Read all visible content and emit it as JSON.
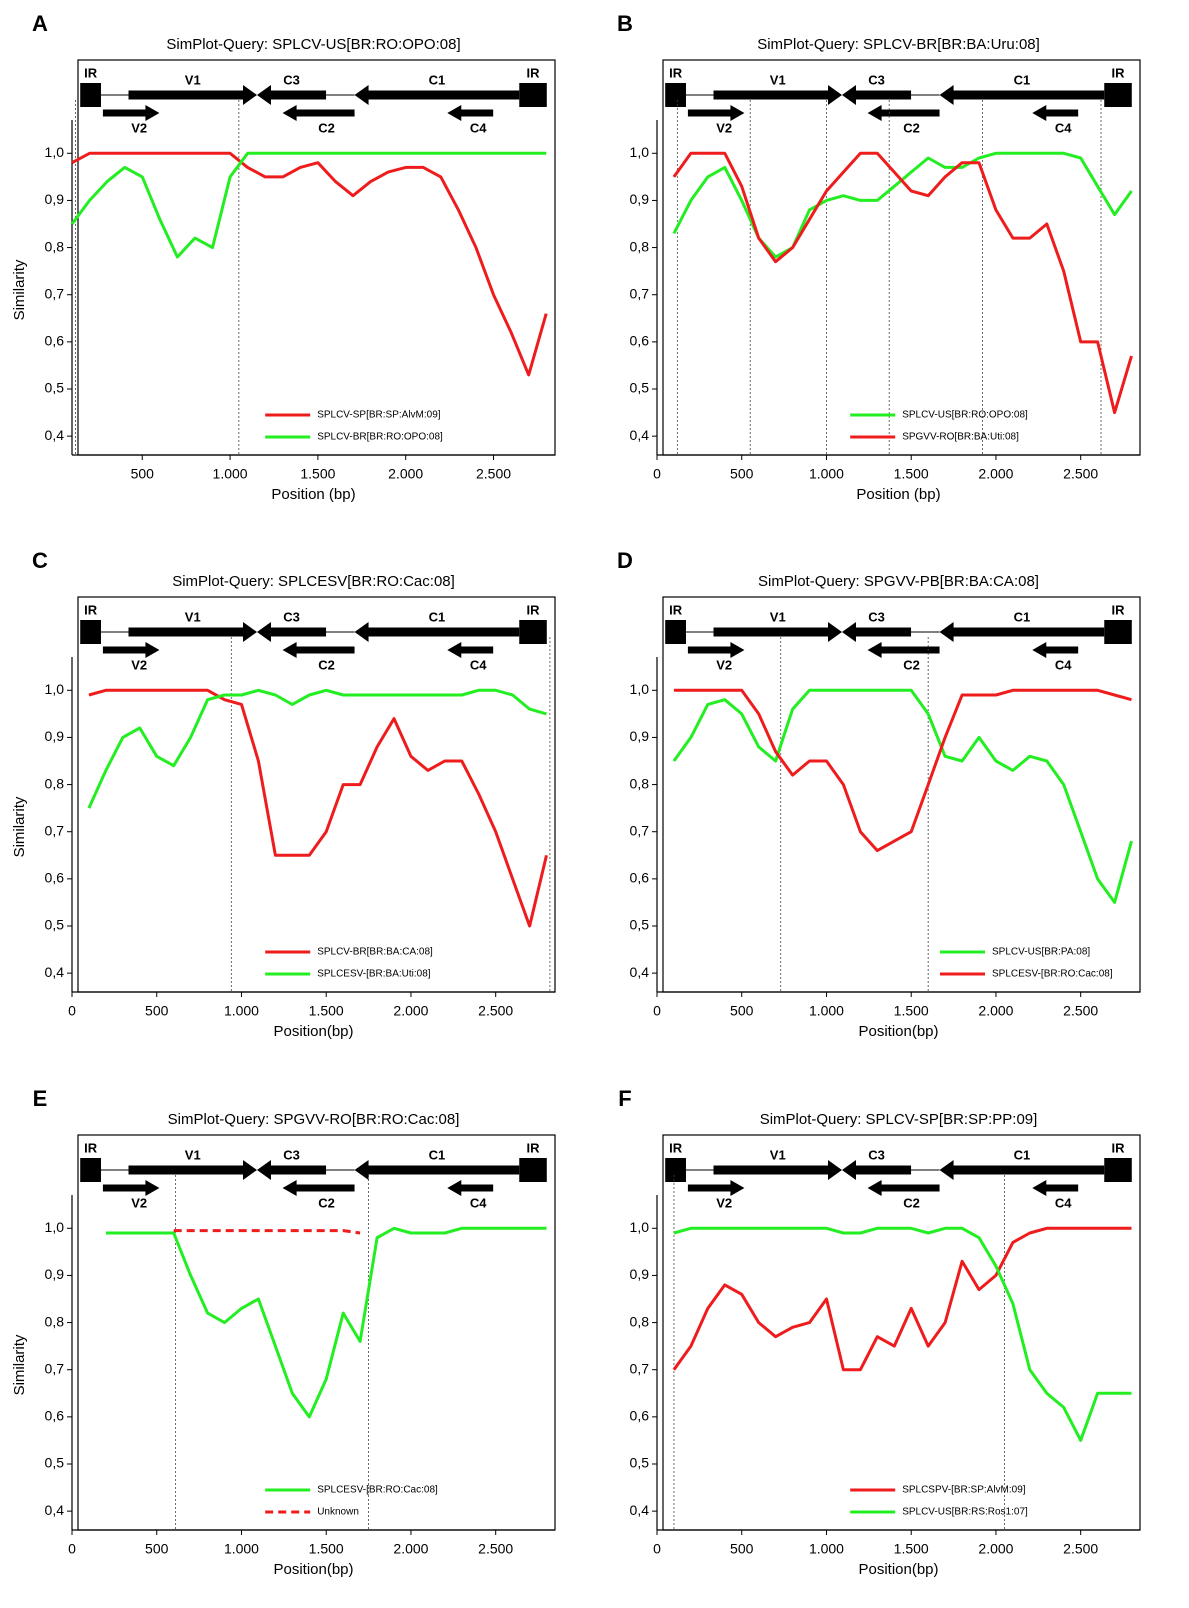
{
  "chart_data": [
    {
      "type": "line",
      "panel": "A",
      "title": "SimPlot-Query: SPLCV-US[BR:RO:OPO:08]",
      "y_label": "Similarity",
      "x_label": "Position (bp)",
      "genes": [
        "IR",
        "V1",
        "C3",
        "C1",
        "IR",
        "V2",
        "C2",
        "C4"
      ],
      "x": [
        100,
        200,
        300,
        400,
        500,
        600,
        700,
        800,
        900,
        1000,
        1100,
        1200,
        1300,
        1400,
        1500,
        1600,
        1700,
        1800,
        1900,
        2000,
        2100,
        2200,
        2300,
        2400,
        2500,
        2600,
        2700,
        2800
      ],
      "series": [
        {
          "name": "SPLCV-SP[BR:SP:AlvM:09]",
          "color": "#ee1c1c",
          "values": [
            0.98,
            1,
            1,
            1,
            1,
            1,
            1,
            1,
            1,
            1,
            0.97,
            0.95,
            0.95,
            0.97,
            0.98,
            0.94,
            0.91,
            0.94,
            0.96,
            0.97,
            0.97,
            0.95,
            0.88,
            0.8,
            0.7,
            0.62,
            0.53,
            0.66
          ]
        },
        {
          "name": "SPLCV-BR[BR:RO:OPO:08]",
          "color": "#22ee22",
          "values": [
            0.85,
            0.9,
            0.94,
            0.97,
            0.95,
            0.86,
            0.78,
            0.82,
            0.8,
            0.95,
            1,
            1,
            1,
            1,
            1,
            1,
            1,
            1,
            1,
            1,
            1,
            1,
            1,
            1,
            1,
            1,
            1,
            1
          ]
        }
      ],
      "breakpoints": [
        120,
        1050
      ],
      "legend": "lower center",
      "xlim": [
        100,
        2850
      ],
      "ylim": [
        0.36,
        1.06
      ],
      "xticks": [
        500,
        {
          "value": 1000,
          "label": "1.000"
        },
        {
          "value": 1500,
          "label": "1.500"
        },
        {
          "value": 2000,
          "label": "2.000"
        },
        {
          "value": 2500,
          "label": "2.500"
        }
      ],
      "yticks": [
        {
          "value": 0.4,
          "label": "0,4"
        },
        {
          "value": 0.5,
          "label": "0,5"
        },
        {
          "value": 0.6,
          "label": "0,6"
        },
        {
          "value": 0.7,
          "label": "0,7"
        },
        {
          "value": 0.8,
          "label": "0,8"
        },
        {
          "value": 0.9,
          "label": "0,9"
        },
        {
          "value": 1,
          "label": "1,0"
        }
      ]
    },
    {
      "type": "line",
      "panel": "B",
      "title": "SimPlot-Query: SPLCV-BR[BR:BA:Uru:08]",
      "x_label": "Position (bp)",
      "genes": [
        "IR",
        "V1",
        "C3",
        "C1",
        "IR",
        "V2",
        "C2",
        "C4"
      ],
      "x": [
        100,
        200,
        300,
        400,
        500,
        600,
        700,
        800,
        900,
        1000,
        1100,
        1200,
        1300,
        1400,
        1500,
        1600,
        1700,
        1800,
        1900,
        2000,
        2100,
        2200,
        2300,
        2400,
        2500,
        2600,
        2700,
        2800
      ],
      "series": [
        {
          "name": "SPLCV-US[BR:RO:OPO:08]",
          "color": "#22ee22",
          "values": [
            0.83,
            0.9,
            0.95,
            0.97,
            0.9,
            0.82,
            0.78,
            0.8,
            0.88,
            0.9,
            0.91,
            0.9,
            0.9,
            0.93,
            0.96,
            0.99,
            0.97,
            0.97,
            0.99,
            1,
            1,
            1,
            1,
            1,
            0.99,
            0.93,
            0.87,
            0.92
          ]
        },
        {
          "name": "SPGVV-RO[BR:BA:Uti:08]",
          "color": "#ee1c1c",
          "values": [
            0.95,
            1,
            1,
            1,
            0.93,
            0.82,
            0.77,
            0.8,
            0.86,
            0.92,
            0.96,
            1,
            1,
            0.96,
            0.92,
            0.91,
            0.95,
            0.98,
            0.98,
            0.88,
            0.82,
            0.82,
            0.85,
            0.75,
            0.6,
            0.6,
            0.45,
            0.57
          ]
        }
      ],
      "breakpoints": [
        120,
        550,
        1000,
        1370,
        1920,
        2620
      ],
      "legend": "lower center",
      "xlim": [
        0,
        2850
      ],
      "ylim": [
        0.36,
        1.06
      ],
      "xticks": [
        0,
        500,
        {
          "value": 1000,
          "label": "1.000"
        },
        {
          "value": 1500,
          "label": "1.500"
        },
        {
          "value": 2000,
          "label": "2.000"
        },
        {
          "value": 2500,
          "label": "2.500"
        }
      ],
      "yticks": [
        {
          "value": 0.4,
          "label": "0,4"
        },
        {
          "value": 0.5,
          "label": "0,5"
        },
        {
          "value": 0.6,
          "label": "0,6"
        },
        {
          "value": 0.7,
          "label": "0,7"
        },
        {
          "value": 0.8,
          "label": "0,8"
        },
        {
          "value": 0.9,
          "label": "0,9"
        },
        {
          "value": 1,
          "label": "1,0"
        }
      ]
    },
    {
      "type": "line",
      "panel": "C",
      "title": "SimPlot-Query: SPLCESV[BR:RO:Cac:08]",
      "y_label": "Similarity",
      "x_label": "Position(bp)",
      "genes": [
        "IR",
        "V1",
        "C3",
        "C1",
        "IR",
        "V2",
        "C2",
        "C4"
      ],
      "x": [
        100,
        200,
        300,
        400,
        500,
        600,
        700,
        800,
        900,
        1000,
        1100,
        1200,
        1300,
        1400,
        1500,
        1600,
        1700,
        1800,
        1900,
        2000,
        2100,
        2200,
        2300,
        2400,
        2500,
        2600,
        2700,
        2800
      ],
      "series": [
        {
          "name": "SPLCV-BR[BR:BA:CA:08]",
          "color": "#ee1c1c",
          "values": [
            0.99,
            1,
            1,
            1,
            1,
            1,
            1,
            1,
            0.98,
            0.97,
            0.85,
            0.65,
            0.65,
            0.65,
            0.7,
            0.8,
            0.8,
            0.88,
            0.94,
            0.86,
            0.83,
            0.85,
            0.85,
            0.78,
            0.7,
            0.6,
            0.5,
            0.65
          ]
        },
        {
          "name": "SPLCESV-[BR:BA:Uti:08]",
          "color": "#22ee22",
          "values": [
            0.75,
            0.83,
            0.9,
            0.92,
            0.86,
            0.84,
            0.9,
            0.98,
            0.99,
            0.99,
            1,
            0.99,
            0.97,
            0.99,
            1,
            0.99,
            0.99,
            0.99,
            0.99,
            0.99,
            0.99,
            0.99,
            0.99,
            1,
            1,
            0.99,
            0.96,
            0.95
          ]
        }
      ],
      "breakpoints": [
        940,
        2820
      ],
      "legend": "lower center",
      "xlim": [
        0,
        2850
      ],
      "ylim": [
        0.36,
        1.06
      ],
      "xticks": [
        0,
        500,
        {
          "value": 1000,
          "label": "1.000"
        },
        {
          "value": 1500,
          "label": "1.500"
        },
        {
          "value": 2000,
          "label": "2.000"
        },
        {
          "value": 2500,
          "label": "2.500"
        }
      ],
      "yticks": [
        {
          "value": 0.4,
          "label": "0,4"
        },
        {
          "value": 0.5,
          "label": "0,5"
        },
        {
          "value": 0.6,
          "label": "0,6"
        },
        {
          "value": 0.7,
          "label": "0,7"
        },
        {
          "value": 0.8,
          "label": "0,8"
        },
        {
          "value": 0.9,
          "label": "0,9"
        },
        {
          "value": 1,
          "label": "1,0"
        }
      ]
    },
    {
      "type": "line",
      "panel": "D",
      "title": "SimPlot-Query: SPGVV-PB[BR:BA:CA:08]",
      "x_label": "Position(bp)",
      "genes": [
        "IR",
        "V1",
        "C3",
        "C1",
        "IR",
        "V2",
        "C2",
        "C4"
      ],
      "x": [
        100,
        200,
        300,
        400,
        500,
        600,
        700,
        800,
        900,
        1000,
        1100,
        1200,
        1300,
        1400,
        1500,
        1600,
        1700,
        1800,
        1900,
        2000,
        2100,
        2200,
        2300,
        2400,
        2500,
        2600,
        2700,
        2800
      ],
      "series": [
        {
          "name": "SPLCV-US[BR:PA:08]",
          "color": "#22ee22",
          "values": [
            0.85,
            0.9,
            0.97,
            0.98,
            0.95,
            0.88,
            0.85,
            0.96,
            1,
            1,
            1,
            1,
            1,
            1,
            1,
            0.95,
            0.86,
            0.85,
            0.9,
            0.85,
            0.83,
            0.86,
            0.85,
            0.8,
            0.7,
            0.6,
            0.55,
            0.68
          ]
        },
        {
          "name": "SPLCESV-[BR:RO:Cac:08]",
          "color": "#ee1c1c",
          "values": [
            1,
            1,
            1,
            1,
            1,
            0.95,
            0.87,
            0.82,
            0.85,
            0.85,
            0.8,
            0.7,
            0.66,
            0.68,
            0.7,
            0.8,
            0.9,
            0.99,
            0.99,
            0.99,
            1,
            1,
            1,
            1,
            1,
            1,
            0.99,
            0.98
          ]
        }
      ],
      "breakpoints": [
        730,
        1600
      ],
      "legend": "lower right",
      "xlim": [
        0,
        2850
      ],
      "ylim": [
        0.36,
        1.06
      ],
      "xticks": [
        0,
        500,
        {
          "value": 1000,
          "label": "1.000"
        },
        {
          "value": 1500,
          "label": "1.500"
        },
        {
          "value": 2000,
          "label": "2.000"
        },
        {
          "value": 2500,
          "label": "2.500"
        }
      ],
      "yticks": [
        {
          "value": 0.4,
          "label": "0,4"
        },
        {
          "value": 0.5,
          "label": "0,5"
        },
        {
          "value": 0.6,
          "label": "0,6"
        },
        {
          "value": 0.7,
          "label": "0,7"
        },
        {
          "value": 0.8,
          "label": "0,8"
        },
        {
          "value": 0.9,
          "label": "0,9"
        },
        {
          "value": 1,
          "label": "1,0"
        }
      ]
    },
    {
      "type": "line",
      "panel": "E",
      "title": "SimPlot-Query: SPGVV-RO[BR:RO:Cac:08]",
      "y_label": "Similarity",
      "x_label": "Position(bp)",
      "genes": [
        "IR",
        "V1",
        "C3",
        "C1",
        "IR",
        "V2",
        "C2",
        "C4"
      ],
      "x": [
        100,
        200,
        300,
        400,
        500,
        600,
        700,
        800,
        900,
        1000,
        1100,
        1200,
        1300,
        1400,
        1500,
        1600,
        1700,
        1800,
        1900,
        2000,
        2100,
        2200,
        2300,
        2400,
        2500,
        2600,
        2700,
        2800
      ],
      "series": [
        {
          "name": "SPLCESV-[BR:RO:Cac:08]",
          "color": "#22ee22",
          "values": [
            null,
            0.99,
            0.99,
            0.99,
            0.99,
            0.99,
            0.9,
            0.82,
            0.8,
            0.83,
            0.85,
            0.75,
            0.65,
            0.6,
            0.68,
            0.82,
            0.76,
            0.98,
            1,
            0.99,
            0.99,
            0.99,
            1,
            1,
            1,
            1,
            1,
            1
          ]
        },
        {
          "name": "Unknown",
          "color": "#ee1c1c",
          "dash": true,
          "values": [
            null,
            null,
            null,
            null,
            null,
            0.995,
            0.995,
            0.995,
            0.995,
            0.995,
            0.995,
            0.995,
            0.995,
            0.995,
            0.995,
            0.995,
            0.99,
            null,
            null,
            null,
            null,
            null,
            null,
            null,
            null,
            null,
            null,
            null
          ]
        }
      ],
      "breakpoints": [
        610,
        1750
      ],
      "legend": "lower center",
      "xlim": [
        0,
        2850
      ],
      "ylim": [
        0.36,
        1.06
      ],
      "xticks": [
        0,
        500,
        {
          "value": 1000,
          "label": "1.000"
        },
        {
          "value": 1500,
          "label": "1.500"
        },
        {
          "value": 2000,
          "label": "2.000"
        },
        {
          "value": 2500,
          "label": "2.500"
        }
      ],
      "yticks": [
        {
          "value": 0.4,
          "label": "0,4"
        },
        {
          "value": 0.5,
          "label": "0,5"
        },
        {
          "value": 0.6,
          "label": "0,6"
        },
        {
          "value": 0.7,
          "label": "0,7"
        },
        {
          "value": 0.8,
          "label": "0,8"
        },
        {
          "value": 0.9,
          "label": "0,9"
        },
        {
          "value": 1,
          "label": "1,0"
        }
      ]
    },
    {
      "type": "line",
      "panel": "F",
      "title": "SimPlot-Query: SPLCV-SP[BR:SP:PP:09]",
      "x_label": "Position(bp)",
      "genes": [
        "IR",
        "V1",
        "C3",
        "C1",
        "IR",
        "V2",
        "C2",
        "C4"
      ],
      "x": [
        100,
        200,
        300,
        400,
        500,
        600,
        700,
        800,
        900,
        1000,
        1100,
        1200,
        1300,
        1400,
        1500,
        1600,
        1700,
        1800,
        1900,
        2000,
        2100,
        2200,
        2300,
        2400,
        2500,
        2600,
        2700,
        2800
      ],
      "series": [
        {
          "name": "SPLCSPV-[BR:SP:AlvM:09]",
          "color": "#ee1c1c",
          "values": [
            0.7,
            0.75,
            0.83,
            0.88,
            0.86,
            0.8,
            0.77,
            0.79,
            0.8,
            0.85,
            0.7,
            0.7,
            0.77,
            0.75,
            0.83,
            0.75,
            0.8,
            0.93,
            0.87,
            0.9,
            0.97,
            0.99,
            1,
            1,
            1,
            1,
            1,
            1
          ]
        },
        {
          "name": "SPLCV-US[BR:RS:Ros1:07]",
          "color": "#22ee22",
          "values": [
            0.99,
            1,
            1,
            1,
            1,
            1,
            1,
            1,
            1,
            1,
            0.99,
            0.99,
            1,
            1,
            1,
            0.99,
            1,
            1,
            0.98,
            0.92,
            0.84,
            0.7,
            0.65,
            0.62,
            0.55,
            0.65,
            0.65,
            0.65
          ]
        }
      ],
      "breakpoints": [
        100,
        2050
      ],
      "legend": "lower center",
      "xlim": [
        0,
        2850
      ],
      "ylim": [
        0.36,
        1.06
      ],
      "xticks": [
        0,
        500,
        {
          "value": 1000,
          "label": "1.000"
        },
        {
          "value": 1500,
          "label": "1.500"
        },
        {
          "value": 2000,
          "label": "2.000"
        },
        {
          "value": 2500,
          "label": "2.500"
        }
      ],
      "yticks": [
        {
          "value": 0.4,
          "label": "0,4"
        },
        {
          "value": 0.5,
          "label": "0,5"
        },
        {
          "value": 0.6,
          "label": "0,6"
        },
        {
          "value": 0.7,
          "label": "0,7"
        },
        {
          "value": 0.8,
          "label": "0,8"
        },
        {
          "value": 0.9,
          "label": "0,9"
        },
        {
          "value": 1,
          "label": "1,0"
        }
      ]
    }
  ]
}
